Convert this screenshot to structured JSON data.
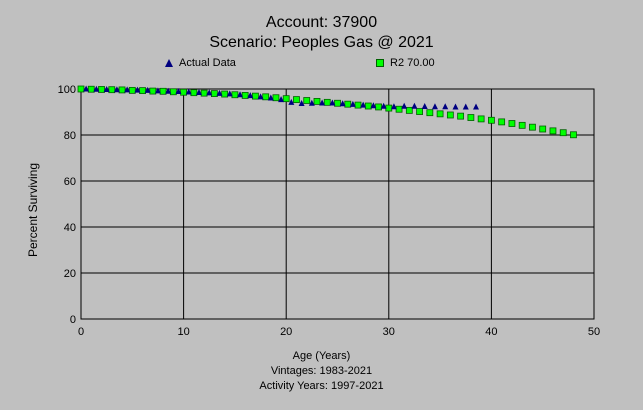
{
  "header": {
    "title": "Account: 37900",
    "subtitle": "Scenario: Peoples Gas @ 2021"
  },
  "footer": {
    "xlabel": "Age (Years)",
    "vintages": "Vintages: 1983-2021",
    "activity": "Activity Years: 1997-2021"
  },
  "chart_data": {
    "type": "scatter",
    "ylabel": "Percent Surviving",
    "xlabel": "Age (Years)",
    "xlim": [
      0,
      50
    ],
    "ylim": [
      0,
      100
    ],
    "xticks": [
      "0",
      "10",
      "20",
      "30",
      "40",
      "50"
    ],
    "yticks": [
      "0",
      "20",
      "40",
      "60",
      "80",
      "100"
    ],
    "grid": true,
    "legend_position": "top",
    "series": [
      {
        "name": "Actual Data",
        "marker": "triangle",
        "color": "#000080",
        "x": [
          0.5,
          1.5,
          2.5,
          3.5,
          4.5,
          5.5,
          6.5,
          7.5,
          8.5,
          9.5,
          10.5,
          11.5,
          12.5,
          13.5,
          14.5,
          15.5,
          16.5,
          17.5,
          18.5,
          19.5,
          20.5,
          21.5,
          22.5,
          23.5,
          24.5,
          25.5,
          26.5,
          27.5,
          28.5,
          29.5,
          30.5,
          31.5,
          32.5,
          33.5,
          34.5,
          35.5,
          36.5,
          37.5,
          38.5
        ],
        "y": [
          100,
          99.9,
          99.8,
          99.7,
          99.6,
          99.5,
          99.4,
          99.2,
          99.0,
          98.9,
          98.7,
          98.5,
          98.3,
          98.1,
          97.9,
          97.5,
          97.1,
          96.6,
          96.1,
          95.4,
          94.2,
          93.7,
          93.8,
          93.9,
          93.9,
          93.6,
          93.3,
          93.0,
          92.7,
          92.5,
          92.3,
          92.5,
          92.5,
          92.4,
          92.3,
          92.3,
          92.2,
          92.2,
          92.2
        ]
      },
      {
        "name": "R2 70.00",
        "marker": "square",
        "color": "#00ff00",
        "x": [
          0,
          1,
          2,
          3,
          4,
          5,
          6,
          7,
          8,
          9,
          10,
          11,
          12,
          13,
          14,
          15,
          16,
          17,
          18,
          19,
          20,
          21,
          22,
          23,
          24,
          25,
          26,
          27,
          28,
          29,
          30,
          31,
          32,
          33,
          34,
          35,
          36,
          37,
          38,
          39,
          40,
          41,
          42,
          43,
          44,
          45,
          46,
          47,
          48
        ],
        "y": [
          100,
          99.9,
          99.8,
          99.7,
          99.6,
          99.4,
          99.3,
          99.1,
          99.0,
          98.8,
          98.6,
          98.4,
          98.2,
          98.0,
          97.8,
          97.5,
          97.2,
          96.9,
          96.6,
          96.2,
          95.8,
          95.4,
          95.0,
          94.6,
          94.2,
          93.8,
          93.4,
          93.0,
          92.6,
          92.2,
          91.7,
          91.2,
          90.7,
          90.2,
          89.7,
          89.2,
          88.7,
          88.2,
          87.6,
          87.0,
          86.4,
          85.7,
          85.0,
          84.2,
          83.4,
          82.6,
          81.8,
          81.0,
          80.1
        ]
      }
    ]
  }
}
